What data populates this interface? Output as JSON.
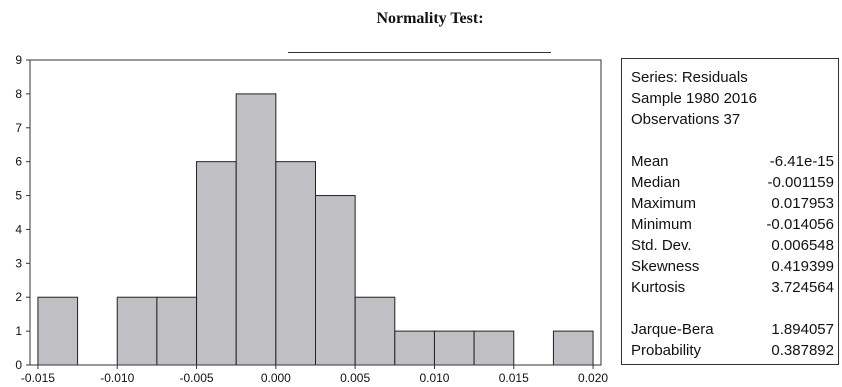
{
  "chart_data": {
    "type": "bar",
    "title": "Normality Test:",
    "x_ticks": [
      "-0.015",
      "-0.010",
      "-0.005",
      "0.000",
      "0.005",
      "0.010",
      "0.015",
      "0.020"
    ],
    "y_ticks": [
      "0",
      "1",
      "2",
      "3",
      "4",
      "5",
      "6",
      "7",
      "8",
      "9"
    ],
    "xlim": [
      -0.0155,
      0.0205
    ],
    "ylim": [
      0,
      9
    ],
    "bin_width": 0.0025,
    "bins": [
      {
        "start": -0.015,
        "count": 2
      },
      {
        "start": -0.0125,
        "count": 0
      },
      {
        "start": -0.01,
        "count": 2
      },
      {
        "start": -0.0075,
        "count": 2
      },
      {
        "start": -0.005,
        "count": 6
      },
      {
        "start": -0.0025,
        "count": 8
      },
      {
        "start": 0.0,
        "count": 6
      },
      {
        "start": 0.0025,
        "count": 5
      },
      {
        "start": 0.005,
        "count": 2
      },
      {
        "start": 0.0075,
        "count": 1
      },
      {
        "start": 0.01,
        "count": 1
      },
      {
        "start": 0.0125,
        "count": 1
      },
      {
        "start": 0.015,
        "count": 0
      },
      {
        "start": 0.0175,
        "count": 1
      }
    ],
    "bar_color": "#c0c0c4",
    "bar_edge_color": "#222222"
  },
  "stats": {
    "series": "Series: Residuals",
    "sample": "Sample 1980 2016",
    "observations": "Observations 37",
    "rows": [
      {
        "label": "Mean",
        "value": "-6.41e-15"
      },
      {
        "label": "Median",
        "value": "-0.001159"
      },
      {
        "label": "Maximum",
        "value": "0.017953"
      },
      {
        "label": "Minimum",
        "value": "-0.014056"
      },
      {
        "label": "Std. Dev.",
        "value": "0.006548"
      },
      {
        "label": "Skewness",
        "value": "0.419399"
      },
      {
        "label": "Kurtosis",
        "value": "3.724564"
      }
    ],
    "tests": [
      {
        "label": "Jarque-Bera",
        "value": "1.894057"
      },
      {
        "label": "Probability",
        "value": "0.387892"
      }
    ]
  }
}
